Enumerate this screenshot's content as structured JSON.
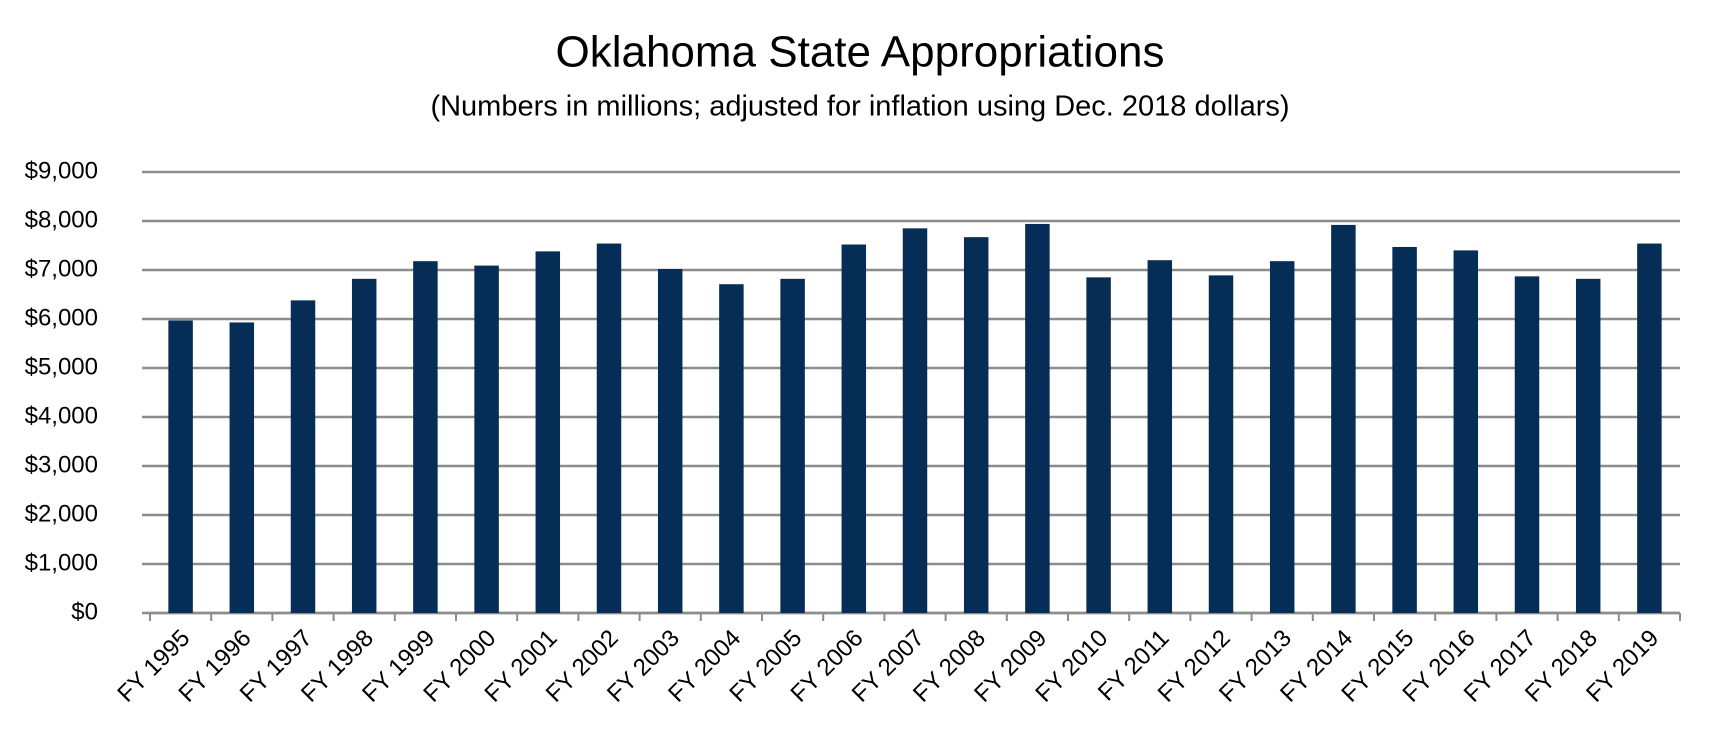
{
  "chart_data": {
    "type": "bar",
    "title": "Oklahoma State Appropriations",
    "subtitle": "(Numbers in millions; adjusted for inflation using Dec. 2018 dollars)",
    "categories": [
      "FY 1995",
      "FY 1996",
      "FY 1997",
      "FY 1998",
      "FY 1999",
      "FY 2000",
      "FY 2001",
      "FY 2002",
      "FY 2003",
      "FY 2004",
      "FY 2005",
      "FY 2006",
      "FY 2007",
      "FY 2008",
      "FY 2009",
      "FY 2010",
      "FY 2011",
      "FY 2012",
      "FY 2013",
      "FY 2014",
      "FY 2015",
      "FY 2016",
      "FY 2017",
      "FY 2018",
      "FY 2019"
    ],
    "values": [
      5970,
      5930,
      6380,
      6820,
      7180,
      7090,
      7380,
      7540,
      7020,
      6710,
      6820,
      7520,
      7850,
      7670,
      7940,
      6850,
      7200,
      6890,
      7180,
      7920,
      7470,
      7400,
      6870,
      6820,
      7540
    ],
    "color": "#062d56",
    "ylim": [
      0,
      9000
    ],
    "yticks": [
      {
        "value": 0,
        "label": "$0"
      },
      {
        "value": 1000,
        "label": "$1,000"
      },
      {
        "value": 2000,
        "label": "$2,000"
      },
      {
        "value": 3000,
        "label": "$3,000"
      },
      {
        "value": 4000,
        "label": "$4,000"
      },
      {
        "value": 5000,
        "label": "$5,000"
      },
      {
        "value": 6000,
        "label": "$6,000"
      },
      {
        "value": 7000,
        "label": "$7,000"
      },
      {
        "value": 8000,
        "label": "$8,000"
      },
      {
        "value": 9000,
        "label": "$9,000"
      }
    ],
    "grid": true
  }
}
